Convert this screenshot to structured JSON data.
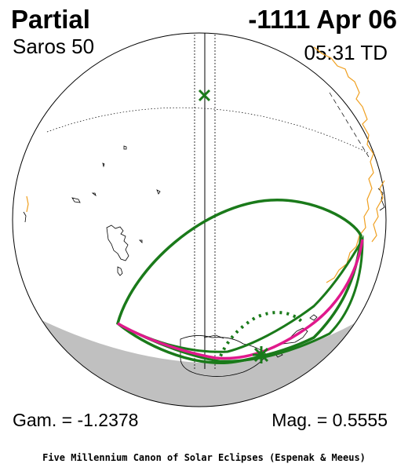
{
  "header": {
    "eclipse_type": "Partial",
    "date": "-1111 Apr 06",
    "saros": "Saros  50",
    "time": "05:31 TD"
  },
  "footer": {
    "gamma": "Gam. = -1.2378",
    "magnitude": "Mag. = 0.5555",
    "credit": "Five Millennium Canon of Solar Eclipses (Espenak & Meeus)"
  },
  "colors": {
    "eclipse_curves": "#1a7a1a",
    "max_eclipse_curve": "#e0198c",
    "coastline_highlight": "#f0a020",
    "night_side": "#c0c0c0"
  },
  "symbols": {
    "greatest_eclipse_marker": "green-star",
    "sub_solar_marker": "green-x"
  }
}
